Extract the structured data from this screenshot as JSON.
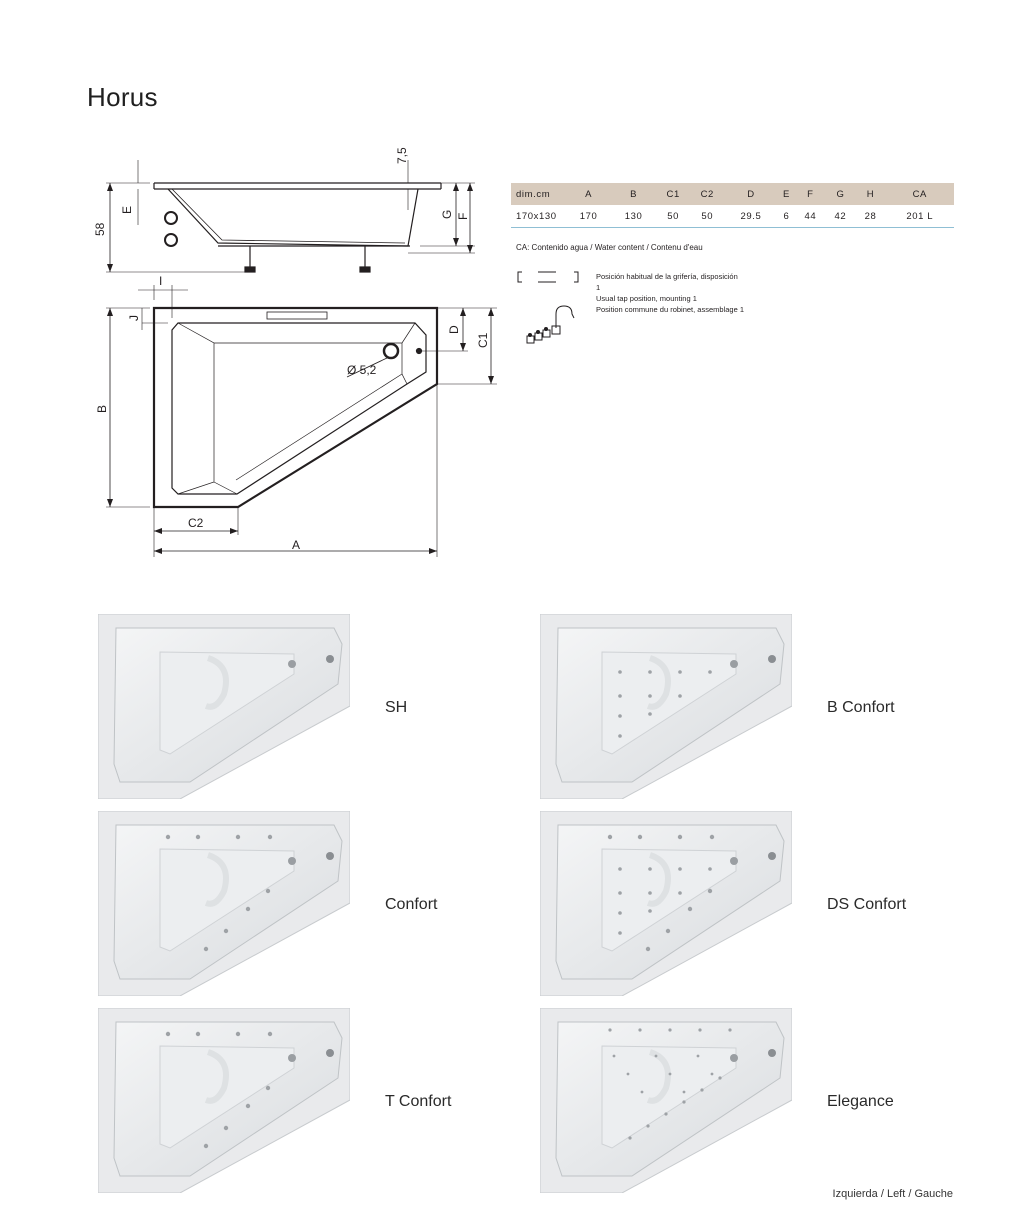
{
  "title": "Horus",
  "drawing_labels": {
    "dim_75": "7,5",
    "dim_58": "58",
    "dim_E": "E",
    "dim_G": "G",
    "dim_F": "F",
    "dim_I": "I",
    "dim_J": "J",
    "dim_D": "D",
    "dim_C1": "C1",
    "dim_B": "B",
    "dim_C2": "C2",
    "dim_A": "A",
    "drain": "Ø 5,2"
  },
  "spec_table": {
    "headers": [
      "dim.cm",
      "A",
      "B",
      "C1",
      "C2",
      "D",
      "E",
      "F",
      "G",
      "H",
      "CA"
    ],
    "row": [
      "170x130",
      "170",
      "130",
      "50",
      "50",
      "29.5",
      "6",
      "44",
      "42",
      "28",
      "201 L"
    ]
  },
  "ca_note": "CA: Contenido agua / Water content / Contenu d'eau",
  "tap_position": [
    "Posición habitual de la grifería, disposición",
    "1",
    "Usual tap position, mounting 1",
    "Position commune du robinet, assemblage 1"
  ],
  "models": [
    {
      "name": "SH"
    },
    {
      "name": "B Confort"
    },
    {
      "name": "Confort"
    },
    {
      "name": "DS Confort"
    },
    {
      "name": "T Confort"
    },
    {
      "name": "Elegance"
    }
  ],
  "footer": "Izquierda  / Left / Gauche",
  "colors": {
    "table_header": "#d8cbbd",
    "table_rule": "#8fbfd4"
  }
}
